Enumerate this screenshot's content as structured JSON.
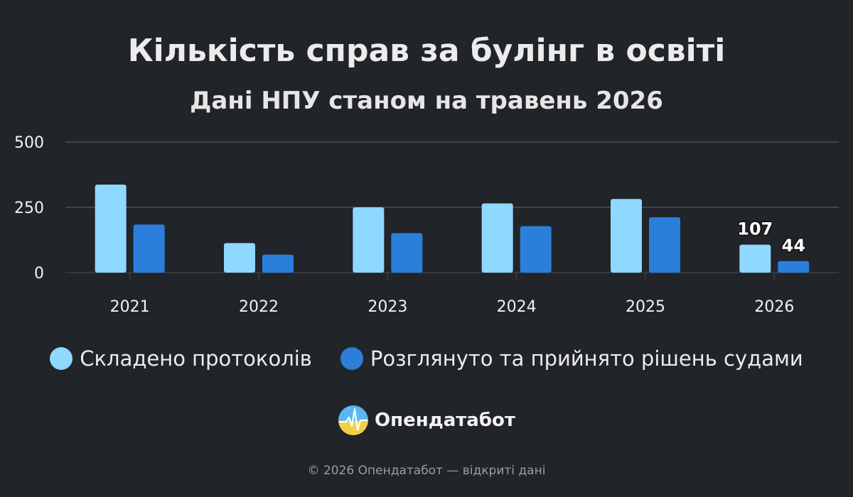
{
  "header": {
    "title": "Кількість справ за булінг в освіті",
    "subtitle": "Дані НПУ станом на травень 2026"
  },
  "chart_data": {
    "type": "bar",
    "categories": [
      "2021",
      "2022",
      "2023",
      "2024",
      "2025",
      "2026"
    ],
    "series": [
      {
        "name": "Складено протоколів",
        "color": "#8fd8ff",
        "values": [
          337,
          113,
          250,
          265,
          282,
          107
        ]
      },
      {
        "name": "Розглянуто та прийнято рішень судами",
        "color": "#2b7fdb",
        "values": [
          184,
          69,
          151,
          178,
          212,
          44
        ]
      }
    ],
    "data_labels": [
      {
        "series": 0,
        "category": "2026",
        "text": "107"
      },
      {
        "series": 1,
        "category": "2026",
        "text": "44"
      }
    ],
    "yticks": [
      "0",
      "250",
      "500"
    ],
    "ylim": [
      0,
      500
    ],
    "grid": true,
    "legend_position": "bottom"
  },
  "brand": {
    "name": "Опендатабот",
    "logo": "opendatabot-logo-icon"
  },
  "footer": {
    "text": "© 2026 Опендатабот — відкриті дані"
  }
}
